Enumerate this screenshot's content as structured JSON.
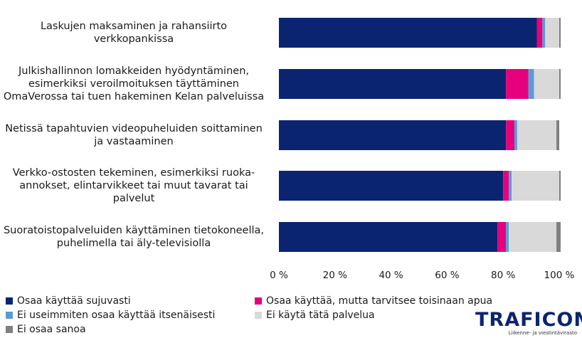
{
  "chart_data": {
    "type": "bar",
    "orientation": "horizontal",
    "stacked": true,
    "categories": [
      "Laskujen maksaminen ja rahansiirto verkkopankissa",
      "Julkishallinnon lomakkeiden hyödyntäminen, esimerkiksi veroilmoituksen täyttäminen OmaVerossa tai tuen hakeminen Kelan palveluissa",
      "Netissä tapahtuvien videopuheluiden soittaminen ja vastaaminen",
      "Verkko-ostosten tekeminen, esimerkiksi ruoka-annokset, elintarvikkeet tai muut tavarat tai palvelut",
      "Suoratoistopalveluiden käyttäminen tietokoneella, puhelimella tai äly-televisiolla"
    ],
    "category_lines": [
      [
        "Laskujen maksaminen ja rahansiirto",
        "verkkopankissa"
      ],
      [
        "Julkishallinnon lomakkeiden hyödyntäminen,",
        "esimerkiksi veroilmoituksen täyttäminen",
        "OmaVerossa tai tuen hakeminen Kelan palveluissa"
      ],
      [
        "Netissä tapahtuvien videopuheluiden soittaminen",
        "ja vastaaminen"
      ],
      [
        "Verkko-ostosten tekeminen, esimerkiksi ruoka-",
        "annokset, elintarvikkeet tai muut tavarat tai",
        "palvelut"
      ],
      [
        "Suoratoistopalveluiden käyttäminen tietokoneella,",
        "puhelimella tai äly-televisiolla"
      ]
    ],
    "series": [
      {
        "name": "Osaa käyttää sujuvasti",
        "color": "#0b2472",
        "values": [
          92,
          81,
          81,
          80,
          78
        ]
      },
      {
        "name": "Osaa käyttää, mutta tarvitsee toisinaan apua",
        "color": "#e6007e",
        "values": [
          2,
          8,
          3,
          2,
          3
        ]
      },
      {
        "name": "Ei useimmiten osaa käyttää itsenäisesti",
        "color": "#5b9bd5",
        "values": [
          1,
          2,
          1,
          1,
          1
        ]
      },
      {
        "name": "Ei käytä tätä palvelua",
        "color": "#d9d9d9",
        "values": [
          5,
          9,
          14,
          17,
          17
        ]
      },
      {
        "name": "Ei osaa sanoa",
        "color": "#7f7f7f",
        "values": [
          0.5,
          0.5,
          1,
          0.5,
          1.5
        ]
      }
    ],
    "xlim": [
      0,
      100
    ],
    "xticks": [
      "0 %",
      "20 %",
      "40 %",
      "60 %",
      "80 %",
      "100 %"
    ],
    "xtick_values": [
      0,
      20,
      40,
      60,
      80,
      100
    ],
    "grid": false,
    "legend_position": "bottom"
  },
  "logo": {
    "text": "TRAFICOM",
    "subtitle": "Liikenne- ja viestintävirasto"
  }
}
